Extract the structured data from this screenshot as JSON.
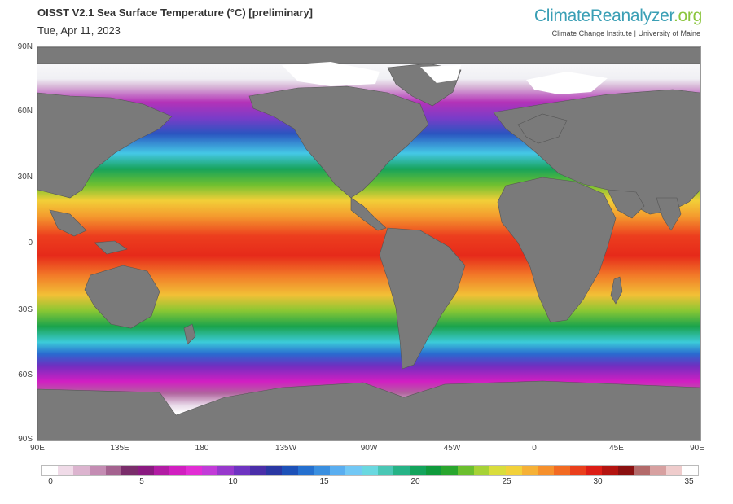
{
  "header": {
    "title": "OISST V2.1 Sea Surface Temperature (°C) [preliminary]",
    "date": "Tue, Apr 11, 2023",
    "brand_main": "ClimateReanalyzer",
    "brand_suffix": ".org",
    "institute": "Climate Change Institute | University of Maine"
  },
  "map": {
    "lat_labels": [
      "90N",
      "60N",
      "30N",
      "0",
      "30S",
      "60S",
      "90S"
    ],
    "lon_labels": [
      "90E",
      "135E",
      "180",
      "135W",
      "90W",
      "45W",
      "0",
      "45E",
      "90E"
    ],
    "land_color": "#7a7a7a",
    "ice_color": "#ffffff"
  },
  "colorbar": {
    "ticks": [
      "0",
      "5",
      "10",
      "15",
      "20",
      "25",
      "30",
      "35"
    ],
    "min": 0,
    "max": 35,
    "colors": [
      "#ffffff",
      "#f0dbe8",
      "#dcb4cf",
      "#c48cb3",
      "#a4628f",
      "#7a2d6b",
      "#8a1a80",
      "#b21ca4",
      "#d11fc0",
      "#e22dd4",
      "#c23bd8",
      "#9738cc",
      "#6e33c1",
      "#4a2ea9",
      "#2a37a3",
      "#1d51b8",
      "#2570cf",
      "#3a8fe0",
      "#5aaef0",
      "#72c8f5",
      "#6ad8e0",
      "#4ac7b5",
      "#26b386",
      "#13a45c",
      "#0f9a3c",
      "#29a62e",
      "#6bbf2e",
      "#a6d236",
      "#d9dd3c",
      "#f2d13a",
      "#f6b136",
      "#f6902c",
      "#f26a22",
      "#ea3f1c",
      "#dc1d16",
      "#b41410",
      "#8a1010",
      "#b36a6a",
      "#d7a0a0",
      "#efcccc",
      "#ffffff"
    ]
  }
}
